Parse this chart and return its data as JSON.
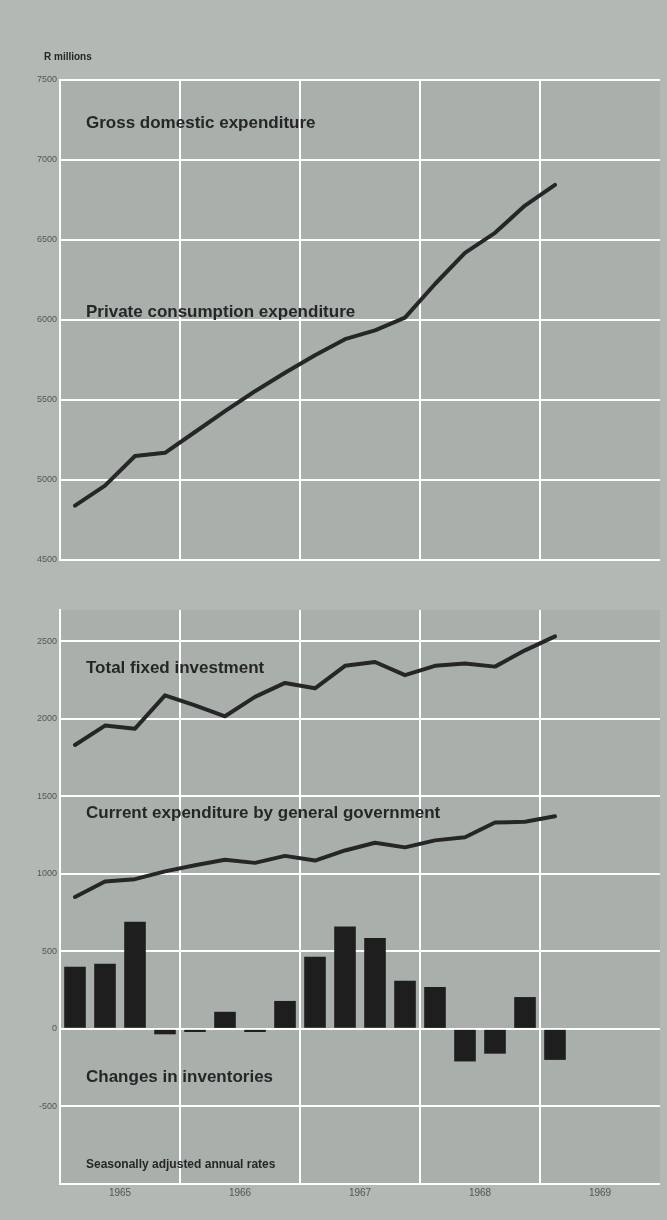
{
  "chart_data": [
    {
      "type": "line",
      "title": "Gross domestic expenditure",
      "ylabel": "R millions",
      "x": [
        1965.125,
        1965.375,
        1965.625,
        1965.875,
        1966.125,
        1966.375,
        1966.625,
        1966.875,
        1967.125,
        1967.375,
        1967.625,
        1967.875,
        1968.125,
        1968.375,
        1968.625,
        1968.875,
        1969.125
      ],
      "series": [
        {
          "name": "Private consumption expenditure",
          "color": "#262626",
          "values": [
            4840,
            4965,
            5150,
            5170,
            5300,
            5430,
            5555,
            5670,
            5780,
            5880,
            5935,
            6015,
            6225,
            6420,
            6545,
            6715,
            6845
          ]
        }
      ],
      "xlim": [
        1965,
        1970
      ],
      "xticks": [
        {
          "value": 1966,
          "label": null
        },
        {
          "value": 1967,
          "label": null
        },
        {
          "value": 1968,
          "label": null
        },
        {
          "value": 1969,
          "label": null
        }
      ],
      "ylim": [
        4500,
        7500
      ],
      "yticks": [
        4500,
        5000,
        5500,
        6000,
        6500,
        7000,
        7500
      ],
      "tick_labels": "y",
      "grid": true,
      "legend": false,
      "marker": "none",
      "line_style": "solid"
    },
    {
      "type": "bar",
      "x": [
        1965.125,
        1965.375,
        1965.625,
        1965.875,
        1966.125,
        1966.375,
        1966.625,
        1966.875,
        1967.125,
        1967.375,
        1967.625,
        1967.875,
        1968.125,
        1968.375,
        1968.625,
        1968.875,
        1969.125
      ],
      "series": [
        {
          "name": "Total fixed investment",
          "type": "line",
          "color": "#262626",
          "values": [
            1830,
            1955,
            1935,
            2150,
            2085,
            2015,
            2140,
            2230,
            2195,
            2340,
            2365,
            2280,
            2340,
            2355,
            2335,
            2440,
            2530
          ]
        },
        {
          "name": "Current expenditure by general government",
          "type": "line",
          "color": "#262626",
          "values": [
            850,
            950,
            965,
            1015,
            1055,
            1090,
            1070,
            1115,
            1085,
            1150,
            1200,
            1170,
            1215,
            1235,
            1330,
            1335,
            1370
          ]
        },
        {
          "name": "Changes in inventories",
          "color": "#1e1e1e",
          "values": [
            400,
            420,
            690,
            -35,
            -20,
            110,
            -20,
            180,
            465,
            660,
            585,
            310,
            270,
            -210,
            -160,
            205,
            -200
          ]
        }
      ],
      "xlim": [
        1965,
        1970
      ],
      "xticks": [
        {
          "value": 1965.5,
          "label": "1965"
        },
        {
          "value": 1966,
          "label": null
        },
        {
          "value": 1966.5,
          "label": "1966"
        },
        {
          "value": 1967,
          "label": null
        },
        {
          "value": 1967.5,
          "label": "1967"
        },
        {
          "value": 1968,
          "label": null
        },
        {
          "value": 1968.5,
          "label": "1968"
        },
        {
          "value": 1969,
          "label": null
        },
        {
          "value": 1969.5,
          "label": "1969"
        }
      ],
      "ylim": [
        -1000,
        2700
      ],
      "yticks": [
        {
          "value": -1000,
          "label": null
        },
        -500,
        0,
        500,
        1000,
        1500,
        2000,
        2500
      ],
      "grid": true,
      "legend": false,
      "marker": "none",
      "line_style": "solid",
      "annotations": [
        "Seasonally adjusted annual rates"
      ]
    }
  ]
}
